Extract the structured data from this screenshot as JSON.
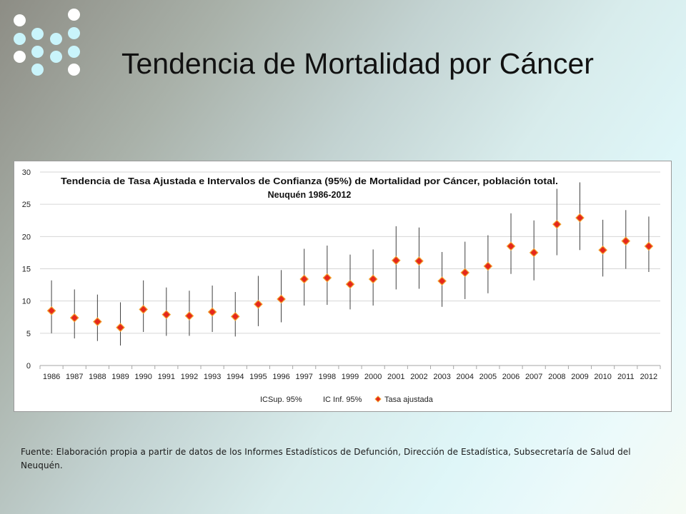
{
  "slide": {
    "title": "Tendencia de Mortalidad por Cáncer",
    "source": "Fuente: Elaboración propia a partir de datos de los Informes Estadísticos de Defunción, Dirección de Estadística, Subsecretaría de Salud del Neuquén."
  },
  "colors": {
    "marker_fill": "#e5281c",
    "marker_stroke": "#f2a230",
    "errorbar": "#404040",
    "gridline": "#d6d6d6",
    "dot_white": "#ffffff",
    "dot_cyan": "#c9f4fb"
  },
  "chart_data": {
    "type": "scatter",
    "title_line1": "Tendencia de Tasa Ajustada e Intervalos de Confianza (95%) de Mortalidad por Cáncer, población total.",
    "title_line2": "Neuquén 1986-2012",
    "ylim": [
      0,
      30
    ],
    "yticks": [
      0,
      5,
      10,
      15,
      20,
      25,
      30
    ],
    "grid": true,
    "legend": [
      "ICSup. 95%",
      "IC Inf. 95%",
      "Tasa ajustada"
    ],
    "legend_placement": "bottom",
    "categories": [
      "1986",
      "1987",
      "1988",
      "1989",
      "1990",
      "1991",
      "1992",
      "1993",
      "1994",
      "1995",
      "1996",
      "1997",
      "1998",
      "1999",
      "2000",
      "2001",
      "2002",
      "2003",
      "2004",
      "2005",
      "2006",
      "2007",
      "2008",
      "2009",
      "2010",
      "2011",
      "2012"
    ],
    "series": [
      {
        "name": "Tasa ajustada",
        "values": [
          8.5,
          7.4,
          6.8,
          5.9,
          8.7,
          7.9,
          7.7,
          8.3,
          7.6,
          9.5,
          10.3,
          13.4,
          13.6,
          12.6,
          13.4,
          16.3,
          16.2,
          13.1,
          14.4,
          15.4,
          18.5,
          17.5,
          21.9,
          22.9,
          17.9,
          19.3,
          18.5
        ]
      },
      {
        "name": "ICSup. 95%",
        "values": [
          13.2,
          11.8,
          11.0,
          9.8,
          13.2,
          12.1,
          11.6,
          12.4,
          11.4,
          13.9,
          14.8,
          18.1,
          18.6,
          17.2,
          18.0,
          21.6,
          21.4,
          17.6,
          19.2,
          20.2,
          23.6,
          22.5,
          27.4,
          28.4,
          22.6,
          24.1,
          23.1
        ]
      },
      {
        "name": "IC Inf. 95%",
        "values": [
          5.0,
          4.2,
          3.8,
          3.1,
          5.2,
          4.6,
          4.6,
          5.2,
          4.5,
          6.1,
          6.7,
          9.3,
          9.4,
          8.7,
          9.3,
          11.8,
          11.9,
          9.1,
          10.3,
          11.2,
          14.2,
          13.2,
          17.1,
          17.9,
          13.8,
          15.0,
          14.5
        ]
      }
    ]
  }
}
